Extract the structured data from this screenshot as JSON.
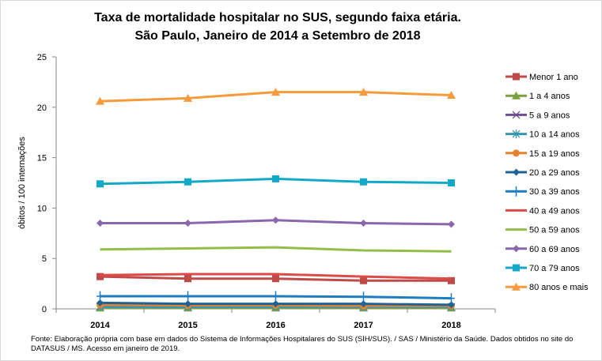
{
  "chart_data": {
    "type": "line",
    "title": [
      "Taxa de mortalidade hospitalar no SUS, segundo faixa etária.",
      "São Paulo, Janeiro de 2014 a Setembro de 2018"
    ],
    "xlabel": "",
    "ylabel": "óbitos / 100 internações",
    "categories": [
      "2014",
      "2015",
      "2016",
      "2017",
      "2018"
    ],
    "ylim": [
      0,
      25
    ],
    "yticks": [
      0,
      5,
      10,
      15,
      20,
      25
    ],
    "grid": false,
    "legend": "right",
    "series": [
      {
        "name": "Menor 1 ano",
        "color": "#be4b48",
        "marker": "square",
        "values": [
          3.2,
          3.0,
          3.0,
          2.8,
          2.8
        ]
      },
      {
        "name": "1 a 4 anos",
        "color": "#7f9e3f",
        "marker": "triangle",
        "values": [
          0.1,
          0.1,
          0.1,
          0.1,
          0.1
        ]
      },
      {
        "name": "5 a 9 anos",
        "color": "#6a4f8c",
        "marker": "x",
        "values": [
          0.2,
          0.2,
          0.2,
          0.2,
          0.2
        ]
      },
      {
        "name": "10 a 14 anos",
        "color": "#3796ad",
        "marker": "star",
        "values": [
          0.2,
          0.2,
          0.2,
          0.2,
          0.2
        ]
      },
      {
        "name": "15 a 19 anos",
        "color": "#e5822f",
        "marker": "circle",
        "values": [
          0.4,
          0.35,
          0.35,
          0.3,
          0.3
        ]
      },
      {
        "name": "20 a 29 anos",
        "color": "#1f6396",
        "marker": "diamond",
        "values": [
          0.6,
          0.5,
          0.5,
          0.5,
          0.4
        ]
      },
      {
        "name": "30 a 39 anos",
        "color": "#1e7cc0",
        "marker": "plus",
        "values": [
          1.25,
          1.25,
          1.25,
          1.2,
          1.05
        ]
      },
      {
        "name": "40 a 49 anos",
        "color": "#dc4b47",
        "marker": "none",
        "values": [
          3.35,
          3.45,
          3.45,
          3.2,
          3.0
        ]
      },
      {
        "name": "50 a 59 anos",
        "color": "#8fbf4a",
        "marker": "none",
        "values": [
          5.9,
          6.0,
          6.1,
          5.8,
          5.7
        ]
      },
      {
        "name": "60 a 69 anos",
        "color": "#8a66ad",
        "marker": "diamond",
        "values": [
          8.5,
          8.5,
          8.8,
          8.5,
          8.4
        ]
      },
      {
        "name": "70 a 79 anos",
        "color": "#12a9c9",
        "marker": "square",
        "values": [
          12.4,
          12.6,
          12.9,
          12.6,
          12.5
        ]
      },
      {
        "name": "80 anos e mais",
        "color": "#f79a3c",
        "marker": "triangle",
        "values": [
          20.6,
          20.9,
          21.5,
          21.5,
          21.2
        ]
      }
    ]
  },
  "note": "Fonte: Elaboração própria com base em dados do Sistema de Informações Hospitalares do SUS (SIH/SUS). / SAS / Ministério da Saúde. Dados obtidos no site do DATASUS / MS. Acesso em janeiro de 2019."
}
